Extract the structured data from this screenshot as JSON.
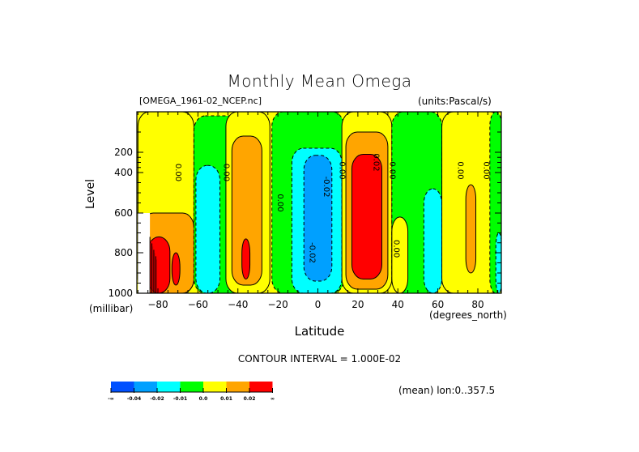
{
  "chart_data": {
    "type": "heatmap",
    "subtype": "filled-contour",
    "title": "Monthly Mean Omega",
    "file_label": "[OMEGA_1961-02_NCEP.nc]",
    "units_label": "(units:Pascal/s)",
    "xlabel": "Latitude",
    "xlabel_units": "(degrees_north)",
    "ylabel": "Level",
    "ylabel_units": "(millibar)",
    "xlim": [
      -90,
      90
    ],
    "ylim": [
      1000,
      100
    ],
    "x_ticks": [
      -80,
      -60,
      -40,
      -20,
      0,
      20,
      40,
      60,
      80
    ],
    "x_tick_labels": [
      "-80",
      "-60",
      "-40",
      "-20",
      "0",
      "20",
      "40",
      "60",
      "80"
    ],
    "y_ticks": [
      200,
      400,
      600,
      800,
      1000
    ],
    "y_tick_labels": [
      "200",
      "400",
      "600",
      "800",
      "1000"
    ],
    "contour_interval_label": "CONTOUR INTERVAL = 1.000E-02",
    "footer_label": "(mean) lon:0..357.5",
    "contour_labels": [
      {
        "text": "0.00",
        "lat": -71,
        "lev": 400
      },
      {
        "text": "0.00",
        "lat": -47,
        "lev": 400
      },
      {
        "text": "0.00",
        "lat": -20,
        "lev": 550
      },
      {
        "text": "-0.02",
        "lat": -4,
        "lev": 800
      },
      {
        "text": "-0.02",
        "lat": 3,
        "lev": 470
      },
      {
        "text": "0.00",
        "lat": 11,
        "lev": 380
      },
      {
        "text": "0.02",
        "lat": 28,
        "lev": 300
      },
      {
        "text": "0.00",
        "lat": 36,
        "lev": 380
      },
      {
        "text": "0.00",
        "lat": 38,
        "lev": 780
      },
      {
        "text": "0.00",
        "lat": 70,
        "lev": 380
      },
      {
        "text": "0.00",
        "lat": 83,
        "lev": 380
      }
    ],
    "legend": {
      "placement": "bottom-left",
      "bins": [
        {
          "label_lo": "-∞",
          "label_hi": "-0.04",
          "color": "#0050ff"
        },
        {
          "label_lo": "-0.04",
          "label_hi": "-0.02",
          "color": "#00a0ff"
        },
        {
          "label_lo": "-0.02",
          "label_hi": "-0.01",
          "color": "#00ffff"
        },
        {
          "label_lo": "-0.01",
          "label_hi": "0.0",
          "color": "#00ff00"
        },
        {
          "label_lo": "0.0",
          "label_hi": "0.01",
          "color": "#ffff00"
        },
        {
          "label_lo": "0.01",
          "label_hi": "0.02",
          "color": "#ffa500"
        },
        {
          "label_lo": "0.02",
          "label_hi": "∞",
          "color": "#ff0000"
        }
      ],
      "tick_labels": [
        "-∞",
        "-0.04",
        "-0.02",
        "-0.01",
        "0.0",
        "0.01",
        "0.02",
        "∞"
      ]
    },
    "regions": [
      {
        "name": "sh-high-lat-positive",
        "class": "pos1",
        "lat": [
          -90,
          -62
        ],
        "lev": [
          100,
          1000
        ]
      },
      {
        "name": "sh-polar-orange",
        "class": "pos2",
        "lat": [
          -88,
          -62
        ],
        "lev": [
          600,
          1000
        ]
      },
      {
        "name": "sh-polar-red",
        "class": "pos3",
        "lat": [
          -85,
          -74
        ],
        "lev": [
          720,
          1000
        ]
      },
      {
        "name": "sh-red-small",
        "class": "pos3",
        "lat": [
          -73,
          -69
        ],
        "lev": [
          800,
          960
        ]
      },
      {
        "name": "sh-midlat-green",
        "class": "neg0",
        "lat": [
          -62,
          -35
        ],
        "lev": [
          110,
          1000
        ]
      },
      {
        "name": "sh-midlat-cyan",
        "class": "neg1",
        "lat": [
          -61,
          -49
        ],
        "lev": [
          330,
          1000
        ]
      },
      {
        "name": "sh-40-yellow",
        "class": "pos1",
        "lat": [
          -46,
          -24
        ],
        "lev": [
          100,
          1000
        ]
      },
      {
        "name": "sh-40-orange",
        "class": "pos2",
        "lat": [
          -43,
          -28
        ],
        "lev": [
          160,
          960
        ]
      },
      {
        "name": "sh-40-red",
        "class": "pos3",
        "lat": [
          -38,
          -34
        ],
        "lev": [
          730,
          930
        ]
      },
      {
        "name": "tropics-green",
        "class": "neg0",
        "lat": [
          -23,
          13
        ],
        "lev": [
          100,
          1000
        ]
      },
      {
        "name": "tropics-cyan",
        "class": "neg1",
        "lat": [
          -13,
          12
        ],
        "lev": [
          190,
          1000
        ]
      },
      {
        "name": "tropics-blue",
        "class": "neg2",
        "lat": [
          -7,
          7
        ],
        "lev": [
          230,
          940
        ]
      },
      {
        "name": "nh-subtrop-yellow",
        "class": "pos1",
        "lat": [
          12,
          37
        ],
        "lev": [
          100,
          1000
        ]
      },
      {
        "name": "nh-subtrop-orange",
        "class": "pos2",
        "lat": [
          14,
          35
        ],
        "lev": [
          150,
          980
        ]
      },
      {
        "name": "nh-subtrop-red",
        "class": "pos3",
        "lat": [
          17,
          32
        ],
        "lev": [
          220,
          930
        ]
      },
      {
        "name": "nh-midlat-green",
        "class": "neg0",
        "lat": [
          37,
          62
        ],
        "lev": [
          100,
          1000
        ]
      },
      {
        "name": "nh-midlat-yellow-low",
        "class": "pos1",
        "lat": [
          37,
          45
        ],
        "lev": [
          620,
          1000
        ]
      },
      {
        "name": "nh-midlat-cyan",
        "class": "neg1",
        "lat": [
          53,
          62
        ],
        "lev": [
          480,
          1000
        ]
      },
      {
        "name": "nh-high-yellow",
        "class": "pos1",
        "lat": [
          62,
          92
        ],
        "lev": [
          100,
          1000
        ]
      },
      {
        "name": "nh-high-orange",
        "class": "pos2",
        "lat": [
          74,
          79
        ],
        "lev": [
          460,
          900
        ]
      },
      {
        "name": "nh-polar-green",
        "class": "neg0",
        "lat": [
          86,
          92
        ],
        "lev": [
          100,
          1000
        ]
      },
      {
        "name": "nh-polar-cyan",
        "class": "neg1",
        "lat": [
          89,
          92
        ],
        "lev": [
          700,
          1000
        ]
      }
    ]
  }
}
